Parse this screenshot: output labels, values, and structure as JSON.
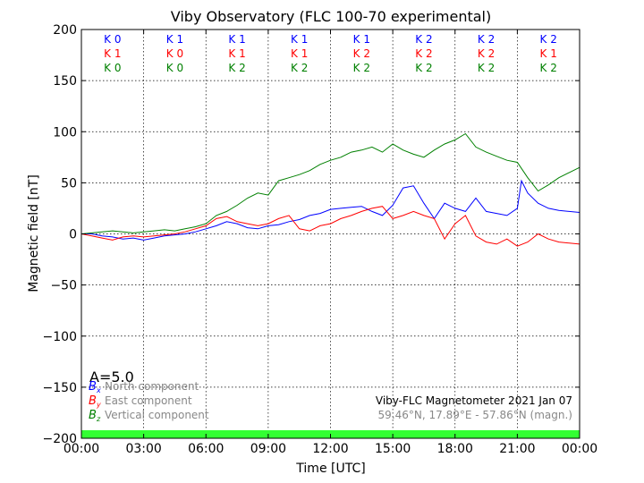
{
  "chart_data": {
    "type": "line",
    "title": "Viby Observatory (FLC 100-70 experimental)",
    "xlabel": "Time [UTC]",
    "ylabel": "Magnetic field [nT]",
    "xlim": [
      0,
      24
    ],
    "ylim": [
      -200,
      200
    ],
    "grid": true,
    "x_ticks": [
      {
        "value": 0,
        "label": "00:00"
      },
      {
        "value": 3,
        "label": "03:00"
      },
      {
        "value": 6,
        "label": "06:00"
      },
      {
        "value": 9,
        "label": "09:00"
      },
      {
        "value": 12,
        "label": "12:00"
      },
      {
        "value": 15,
        "label": "15:00"
      },
      {
        "value": 18,
        "label": "18:00"
      },
      {
        "value": 21,
        "label": "21:00"
      },
      {
        "value": 24,
        "label": "00:00"
      }
    ],
    "y_ticks": [
      {
        "value": 200,
        "label": "200"
      },
      {
        "value": 150,
        "label": "150"
      },
      {
        "value": 100,
        "label": "100"
      },
      {
        "value": 50,
        "label": "50"
      },
      {
        "value": 0,
        "label": "0"
      },
      {
        "value": -50,
        "label": "−50"
      },
      {
        "value": -100,
        "label": "−100"
      },
      {
        "value": -150,
        "label": "−150"
      },
      {
        "value": -200,
        "label": "−200"
      }
    ],
    "series": [
      {
        "symbol": "B",
        "subscript": "x",
        "name": "North component",
        "color": "#0000ff",
        "x": [
          0,
          0.5,
          1,
          1.5,
          2,
          2.5,
          3,
          3.5,
          4,
          4.5,
          5,
          5.5,
          6,
          6.5,
          7,
          7.5,
          8,
          8.5,
          9,
          9.5,
          10,
          10.5,
          11,
          11.5,
          12,
          12.5,
          13,
          13.5,
          14,
          14.5,
          15,
          15.5,
          16,
          16.5,
          17,
          17.5,
          18,
          18.5,
          19,
          19.5,
          20,
          20.5,
          21,
          21.2,
          21.5,
          22,
          22.5,
          23,
          23.5,
          24
        ],
        "y": [
          0,
          0,
          -2,
          -3,
          -5,
          -4,
          -6,
          -4,
          -2,
          -1,
          0,
          2,
          5,
          8,
          12,
          10,
          6,
          5,
          8,
          9,
          12,
          14,
          18,
          20,
          24,
          25,
          26,
          27,
          22,
          18,
          28,
          45,
          47,
          30,
          15,
          30,
          25,
          22,
          35,
          22,
          20,
          18,
          25,
          52,
          40,
          30,
          25,
          23,
          22,
          21
        ]
      },
      {
        "symbol": "B",
        "subscript": "y",
        "name": "East component",
        "color": "#ff0000",
        "x": [
          0,
          0.5,
          1,
          1.5,
          2,
          2.5,
          3,
          3.5,
          4,
          4.5,
          5,
          5.5,
          6,
          6.5,
          7,
          7.5,
          8,
          8.5,
          9,
          9.5,
          10,
          10.5,
          11,
          11.5,
          12,
          12.5,
          13,
          13.5,
          14,
          14.5,
          15,
          15.5,
          16,
          16.5,
          17,
          17.5,
          18,
          18.5,
          19,
          19.5,
          20,
          20.5,
          21,
          21.5,
          22,
          22.5,
          23,
          23.5,
          24
        ],
        "y": [
          0,
          -2,
          -4,
          -6,
          -3,
          -2,
          -3,
          -2,
          -1,
          0,
          2,
          5,
          8,
          15,
          17,
          12,
          10,
          8,
          10,
          15,
          18,
          5,
          3,
          8,
          10,
          15,
          18,
          22,
          25,
          27,
          15,
          18,
          22,
          18,
          15,
          -5,
          10,
          18,
          -2,
          -8,
          -10,
          -5,
          -12,
          -8,
          0,
          -5,
          -8,
          -9,
          -10
        ]
      },
      {
        "symbol": "B",
        "subscript": "z",
        "name": "Vertical component",
        "color": "#008000",
        "x": [
          0,
          0.5,
          1,
          1.5,
          2,
          2.5,
          3,
          3.5,
          4,
          4.5,
          5,
          5.5,
          6,
          6.5,
          7,
          7.5,
          8,
          8.5,
          9,
          9.5,
          10,
          10.5,
          11,
          11.5,
          12,
          12.5,
          13,
          13.5,
          14,
          14.5,
          15,
          15.5,
          16,
          16.5,
          17,
          17.5,
          18,
          18.5,
          19,
          19.5,
          20,
          20.5,
          21,
          21.5,
          22,
          22.5,
          23,
          23.5,
          24
        ],
        "y": [
          0,
          1,
          2,
          3,
          2,
          1,
          2,
          3,
          4,
          3,
          5,
          7,
          10,
          18,
          22,
          28,
          35,
          40,
          38,
          52,
          55,
          58,
          62,
          68,
          72,
          75,
          80,
          82,
          85,
          80,
          88,
          82,
          78,
          75,
          82,
          88,
          92,
          98,
          85,
          80,
          76,
          72,
          70,
          55,
          42,
          48,
          55,
          60,
          65
        ]
      }
    ],
    "k_index_rows": [
      {
        "color": "#0000ff",
        "values": [
          "K 0",
          "K 1",
          "K 1",
          "K 1",
          "K 1",
          "K 2",
          "K 2",
          "K 2"
        ]
      },
      {
        "color": "#ff0000",
        "values": [
          "K 1",
          "K 0",
          "K 1",
          "K 1",
          "K 2",
          "K 2",
          "K 2",
          "K 1"
        ]
      },
      {
        "color": "#008000",
        "values": [
          "K 0",
          "K 0",
          "K 2",
          "K 2",
          "K 2",
          "K 2",
          "K 2",
          "K 2"
        ]
      }
    ],
    "a_index": "A=5.0",
    "activity_bar_color": "#33ff33",
    "annotations": [
      "Viby-FLC Magnetometer 2021 Jan 07",
      "59.46°N, 17.89°E - 57.86°N (magn.)"
    ]
  }
}
